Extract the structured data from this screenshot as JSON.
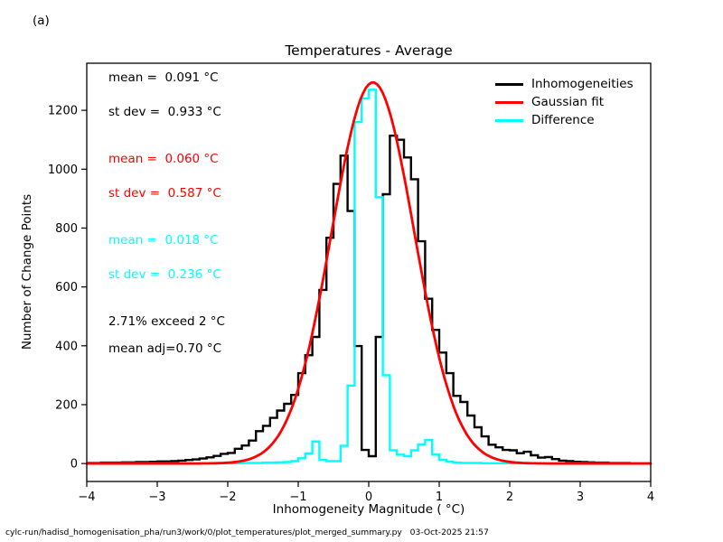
{
  "figure_label": "(a)",
  "title": "Temperatures - Average",
  "axes": {
    "xlabel": "Inhomogeneity Magnitude ( °C)",
    "ylabel": "Number of Change Points"
  },
  "stats_annotations": {
    "all_mean": "mean =  0.091 °C",
    "all_stdev": "st dev =  0.933 °C",
    "fit_mean": "mean =  0.060 °C",
    "fit_stdev": "st dev =  0.587 °C",
    "diff_mean": "mean =  0.018 °C",
    "diff_stdev": "st dev =  0.236 °C",
    "exceed": "2.71% exceed 2 °C",
    "mean_adj": "mean adj=0.70 °C"
  },
  "legend": {
    "items": [
      {
        "label": "Inhomogeneities",
        "color": "#000000"
      },
      {
        "label": "Gaussian fit",
        "color": "#ff0000"
      },
      {
        "label": "Difference",
        "color": "#00ffff"
      }
    ]
  },
  "colors": {
    "black": "#000000",
    "red": "#ff0000",
    "cyan": "#00ffff",
    "background": "#ffffff"
  },
  "footer": "cylc-run/hadisd_homogenisation_pha/run3/work/0/plot_temperatures/plot_merged_summary.py   03-Oct-2025 21:57",
  "chart_data": {
    "type": "bar",
    "subtype": "step-histogram with gaussian fit overlay",
    "title": "Temperatures - Average",
    "xlabel": "Inhomogeneity Magnitude ( °C)",
    "ylabel": "Number of Change Points",
    "xlim": [
      -4,
      4
    ],
    "ylim": [
      -61,
      1360
    ],
    "xtick_values": [
      -4,
      -3,
      -2,
      -1,
      0,
      1,
      2,
      3,
      4
    ],
    "xticks": [
      "−4",
      "−3",
      "−2",
      "−1",
      "0",
      "1",
      "2",
      "3",
      "4"
    ],
    "ytick_values": [
      0,
      200,
      400,
      600,
      800,
      1000,
      1200
    ],
    "yticks": [
      "0",
      "200",
      "400",
      "600",
      "800",
      "1000",
      "1200"
    ],
    "grid": false,
    "legend_position": "upper right, no frame",
    "bin_start": -4,
    "bin_width": 0.1,
    "series": [
      {
        "name": "Inhomogeneities",
        "style": "step",
        "color": "#000000",
        "values": [
          2,
          2,
          3,
          3,
          3,
          4,
          4,
          5,
          5,
          6,
          7,
          7,
          8,
          10,
          12,
          14,
          17,
          21,
          26,
          33,
          36,
          50,
          61,
          78,
          110,
          128,
          155,
          180,
          203,
          233,
          307,
          368,
          430,
          590,
          767,
          950,
          1046,
          858,
          399,
          46,
          25,
          430,
          915,
          1114,
          1100,
          1040,
          966,
          755,
          560,
          454,
          377,
          307,
          230,
          209,
          163,
          123,
          92,
          64,
          55,
          46,
          45,
          35,
          40,
          28,
          20,
          22,
          15,
          10,
          8,
          6,
          5,
          4,
          3,
          3,
          2,
          2,
          2,
          1,
          1,
          1
        ]
      },
      {
        "name": "Gaussian fit",
        "style": "gaussian-curve",
        "color": "#ff0000",
        "amplitude": 1295,
        "mean": 0.06,
        "sigma": 0.587
      },
      {
        "name": "Difference",
        "style": "step",
        "color": "#00ffff",
        "values": [
          1,
          1,
          1,
          1,
          1,
          1,
          1,
          1,
          1,
          1,
          1,
          1,
          1,
          1,
          1,
          1,
          1,
          1,
          1,
          1,
          1,
          1,
          2,
          2,
          2,
          3,
          3,
          4,
          5,
          8,
          18,
          34,
          75,
          12,
          8,
          8,
          60,
          265,
          1160,
          1240,
          1270,
          905,
          300,
          45,
          30,
          25,
          45,
          65,
          80,
          30,
          12,
          6,
          3,
          2,
          2,
          2,
          1,
          1,
          1,
          1,
          1,
          1,
          1,
          1,
          1,
          1,
          1,
          1,
          1,
          1,
          1,
          1,
          1,
          1,
          1,
          1,
          1,
          1,
          1,
          1
        ]
      }
    ],
    "stats": {
      "all_data": {
        "mean_C": 0.091,
        "st_dev_C": 0.933
      },
      "gaussian_fit": {
        "mean_C": 0.06,
        "st_dev_C": 0.587
      },
      "difference": {
        "mean_C": 0.018,
        "st_dev_C": 0.236
      },
      "exceed_2C_percent": 2.71,
      "mean_adjustment_C": 0.7
    }
  }
}
